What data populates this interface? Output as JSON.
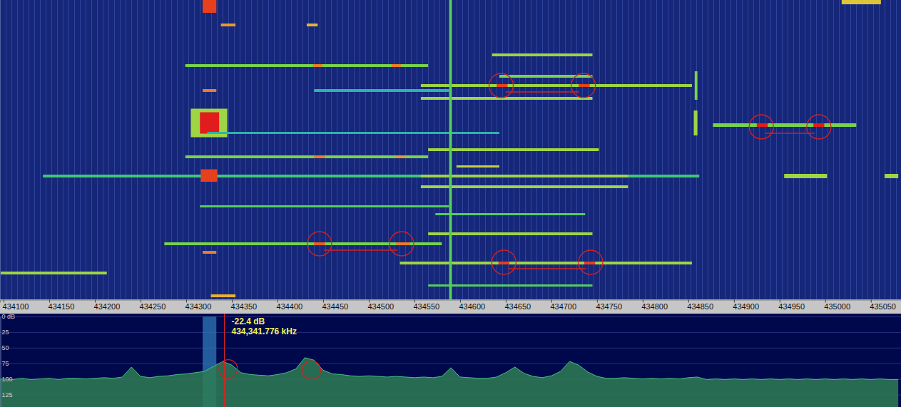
{
  "chart_data": [
    {
      "type": "heatmap",
      "xlim": [
        434096,
        435083
      ],
      "xticks": [
        434100,
        434150,
        434200,
        434250,
        434300,
        434350,
        434400,
        434450,
        434500,
        434550,
        434600,
        434650,
        434700,
        434750,
        434800,
        434850,
        434900,
        434950,
        435000,
        435050
      ],
      "ylim": [
        0,
        84
      ],
      "zlim": [
        0,
        1
      ],
      "tick_labels": "x",
      "signals": [
        {
          "t0": 0,
          "t1": 3.6,
          "x0": 434318,
          "x1": 434333,
          "level": 0.95
        },
        {
          "t0": 0,
          "t1": 1.2,
          "x0": 435018,
          "x1": 435061,
          "level": 0.7
        },
        {
          "t0": 6.6,
          "t1": 7.4,
          "x0": 434338,
          "x1": 434354,
          "level": 0.8
        },
        {
          "t0": 6.6,
          "t1": 7.4,
          "x0": 434432,
          "x1": 434444,
          "level": 0.75
        },
        {
          "t0": 15,
          "t1": 15.8,
          "x0": 434635,
          "x1": 434745,
          "level": 0.6
        },
        {
          "t0": 18,
          "t1": 18.8,
          "x0": 434299,
          "x1": 434565,
          "level": 0.55
        },
        {
          "t0": 18,
          "t1": 18.8,
          "x0": 434439,
          "x1": 434449,
          "level": 0.85
        },
        {
          "t0": 18,
          "t1": 18.8,
          "x0": 434525,
          "x1": 434535,
          "level": 0.85
        },
        {
          "t0": 21,
          "t1": 21.8,
          "x0": 434643,
          "x1": 434745,
          "level": 0.55
        },
        {
          "t0": 23.6,
          "t1": 24.4,
          "x0": 434557,
          "x1": 434854,
          "level": 0.6
        },
        {
          "t0": 23.6,
          "t1": 24.4,
          "x0": 434640,
          "x1": 434652,
          "level": 0.95
        },
        {
          "t0": 23.6,
          "t1": 24.4,
          "x0": 434730,
          "x1": 434742,
          "level": 0.95
        },
        {
          "t0": 25,
          "t1": 25.8,
          "x0": 434440,
          "x1": 434588,
          "level": 0.35
        },
        {
          "t0": 25,
          "t1": 25.8,
          "x0": 434318,
          "x1": 434333,
          "level": 0.85
        },
        {
          "t0": 27.2,
          "t1": 28,
          "x0": 434557,
          "x1": 434745,
          "level": 0.6
        },
        {
          "t0": 30.5,
          "t1": 38.5,
          "x0": 434305,
          "x1": 434345,
          "level": 0.6
        },
        {
          "t0": 31.5,
          "t1": 37.5,
          "x0": 434315,
          "x1": 434336,
          "level": 1
        },
        {
          "t0": 34.6,
          "t1": 35.6,
          "x0": 434877,
          "x1": 435034,
          "level": 0.55
        },
        {
          "t0": 34.6,
          "t1": 35.6,
          "x0": 434925,
          "x1": 434937,
          "level": 1
        },
        {
          "t0": 34.6,
          "t1": 35.6,
          "x0": 434987,
          "x1": 434999,
          "level": 1
        },
        {
          "t0": 31,
          "t1": 38,
          "x0": 434856,
          "x1": 434860,
          "level": 0.6
        },
        {
          "t0": 37,
          "t1": 37.6,
          "x0": 434323,
          "x1": 434643,
          "level": 0.35
        },
        {
          "t0": 41.6,
          "t1": 42.4,
          "x0": 434565,
          "x1": 434752,
          "level": 0.6
        },
        {
          "t0": 43.6,
          "t1": 44.4,
          "x0": 434299,
          "x1": 434565,
          "level": 0.55
        },
        {
          "t0": 43.6,
          "t1": 44.4,
          "x0": 434440,
          "x1": 434452,
          "level": 0.85
        },
        {
          "t0": 43.6,
          "t1": 44.4,
          "x0": 434530,
          "x1": 434540,
          "level": 0.8
        },
        {
          "t0": 46.4,
          "t1": 47,
          "x0": 434596,
          "x1": 434643,
          "level": 0.65
        },
        {
          "t0": 49,
          "t1": 49.8,
          "x0": 434143,
          "x1": 434862,
          "level": 0.45
        },
        {
          "t0": 49,
          "t1": 49.8,
          "x0": 434557,
          "x1": 434784,
          "level": 0.6
        },
        {
          "t0": 47.5,
          "t1": 51,
          "x0": 434316,
          "x1": 434334,
          "level": 0.95
        },
        {
          "t0": 48.8,
          "t1": 50,
          "x0": 434955,
          "x1": 435002,
          "level": 0.6
        },
        {
          "t0": 48.8,
          "t1": 50,
          "x0": 435065,
          "x1": 435080,
          "level": 0.6
        },
        {
          "t0": 52,
          "t1": 52.8,
          "x0": 434557,
          "x1": 434784,
          "level": 0.6
        },
        {
          "t0": 57.6,
          "t1": 58.2,
          "x0": 434315,
          "x1": 434588,
          "level": 0.5
        },
        {
          "t0": 59.8,
          "t1": 60.4,
          "x0": 434573,
          "x1": 434737,
          "level": 0.5
        },
        {
          "t0": 65.2,
          "t1": 66,
          "x0": 434565,
          "x1": 434745,
          "level": 0.6
        },
        {
          "t0": 68,
          "t1": 68.8,
          "x0": 434276,
          "x1": 434580,
          "level": 0.55
        },
        {
          "t0": 68,
          "t1": 68.8,
          "x0": 434440,
          "x1": 434452,
          "level": 0.9
        },
        {
          "t0": 68,
          "t1": 68.8,
          "x0": 434530,
          "x1": 434545,
          "level": 0.85
        },
        {
          "t0": 70.4,
          "t1": 71.2,
          "x0": 434318,
          "x1": 434333,
          "level": 0.85
        },
        {
          "t0": 73.4,
          "t1": 74.2,
          "x0": 434534,
          "x1": 434854,
          "level": 0.6
        },
        {
          "t0": 73.4,
          "t1": 74.2,
          "x0": 434642,
          "x1": 434654,
          "level": 0.95
        },
        {
          "t0": 73.4,
          "t1": 74.2,
          "x0": 434736,
          "x1": 434748,
          "level": 0.95
        },
        {
          "t0": 76.2,
          "t1": 77,
          "x0": 434096,
          "x1": 434213,
          "level": 0.6
        },
        {
          "t0": 79.8,
          "t1": 80.4,
          "x0": 434565,
          "x1": 434745,
          "level": 0.5
        },
        {
          "t0": 82.6,
          "t1": 83.4,
          "x0": 434327,
          "x1": 434354,
          "level": 0.75
        },
        {
          "t0": 0,
          "t1": 84,
          "x0": 434588,
          "x1": 434591,
          "level": 0.5
        },
        {
          "t0": 20,
          "t1": 28,
          "x0": 434857,
          "x1": 434860,
          "level": 0.55
        }
      ],
      "highlights": [
        {
          "t": 24,
          "x": [
            434645,
            434735
          ]
        },
        {
          "t": 35.6,
          "x": [
            434930,
            434993
          ]
        },
        {
          "t": 68.4,
          "x": [
            434446,
            434536
          ]
        },
        {
          "t": 73.6,
          "x": [
            434648,
            434743
          ]
        }
      ]
    },
    {
      "type": "area",
      "xlim": [
        434096,
        435083
      ],
      "ylim": [
        0,
        145
      ],
      "yticks": [
        {
          "value": 0,
          "label": "0 dB"
        },
        25,
        50,
        75,
        100,
        125
      ],
      "tick_labels": "y",
      "grid": true,
      "color": "#2e7d55",
      "x": [
        434090,
        434100,
        434110,
        434120,
        434130,
        434140,
        434150,
        434160,
        434170,
        434180,
        434190,
        434200,
        434210,
        434220,
        434230,
        434240,
        434250,
        434260,
        434270,
        434280,
        434290,
        434300,
        434310,
        434320,
        434330,
        434340,
        434350,
        434360,
        434370,
        434380,
        434390,
        434400,
        434410,
        434420,
        434430,
        434440,
        434450,
        434460,
        434470,
        434480,
        434490,
        434500,
        434510,
        434520,
        434530,
        434540,
        434550,
        434560,
        434570,
        434580,
        434590,
        434600,
        434610,
        434620,
        434630,
        434640,
        434650,
        434660,
        434670,
        434680,
        434690,
        434700,
        434710,
        434720,
        434730,
        434740,
        434750,
        434760,
        434770,
        434780,
        434790,
        434800,
        434810,
        434820,
        434830,
        434840,
        434850,
        434860,
        434870,
        434880,
        434890,
        434900,
        434910,
        434920,
        434930,
        434940,
        434950,
        434960,
        434970,
        434980,
        434990,
        435000,
        435010,
        435020,
        435030,
        435040,
        435050,
        435060,
        435070,
        435080
      ],
      "values": [
        101,
        100,
        101,
        99,
        101,
        100,
        99,
        101,
        99,
        99,
        100,
        99,
        98,
        99,
        97,
        81,
        96,
        98,
        96,
        95,
        93,
        92,
        90,
        88,
        80,
        72,
        78,
        90,
        93,
        94,
        95,
        93,
        90,
        84,
        66,
        70,
        86,
        92,
        93,
        95,
        96,
        95,
        96,
        97,
        96,
        97,
        98,
        97,
        98,
        96,
        82,
        97,
        98,
        99,
        99,
        97,
        90,
        81,
        91,
        96,
        98,
        95,
        88,
        72,
        78,
        89,
        96,
        99,
        99,
        98,
        99,
        100,
        99,
        100,
        99,
        100,
        98,
        97,
        101,
        100,
        101,
        100,
        101,
        100,
        101,
        100,
        101,
        100,
        101,
        100,
        101,
        100,
        101,
        100,
        101,
        100,
        101,
        100,
        101,
        101
      ],
      "band": [
        434318,
        434333
      ],
      "annotations": [
        {
          "text": "-22.4 dB"
        },
        {
          "text": "434,341.776 kHz",
          "x": 434341.776
        }
      ],
      "highlights": [
        {
          "x": 434346,
          "y": 84
        },
        {
          "x": 434437,
          "y": 86
        }
      ]
    }
  ]
}
